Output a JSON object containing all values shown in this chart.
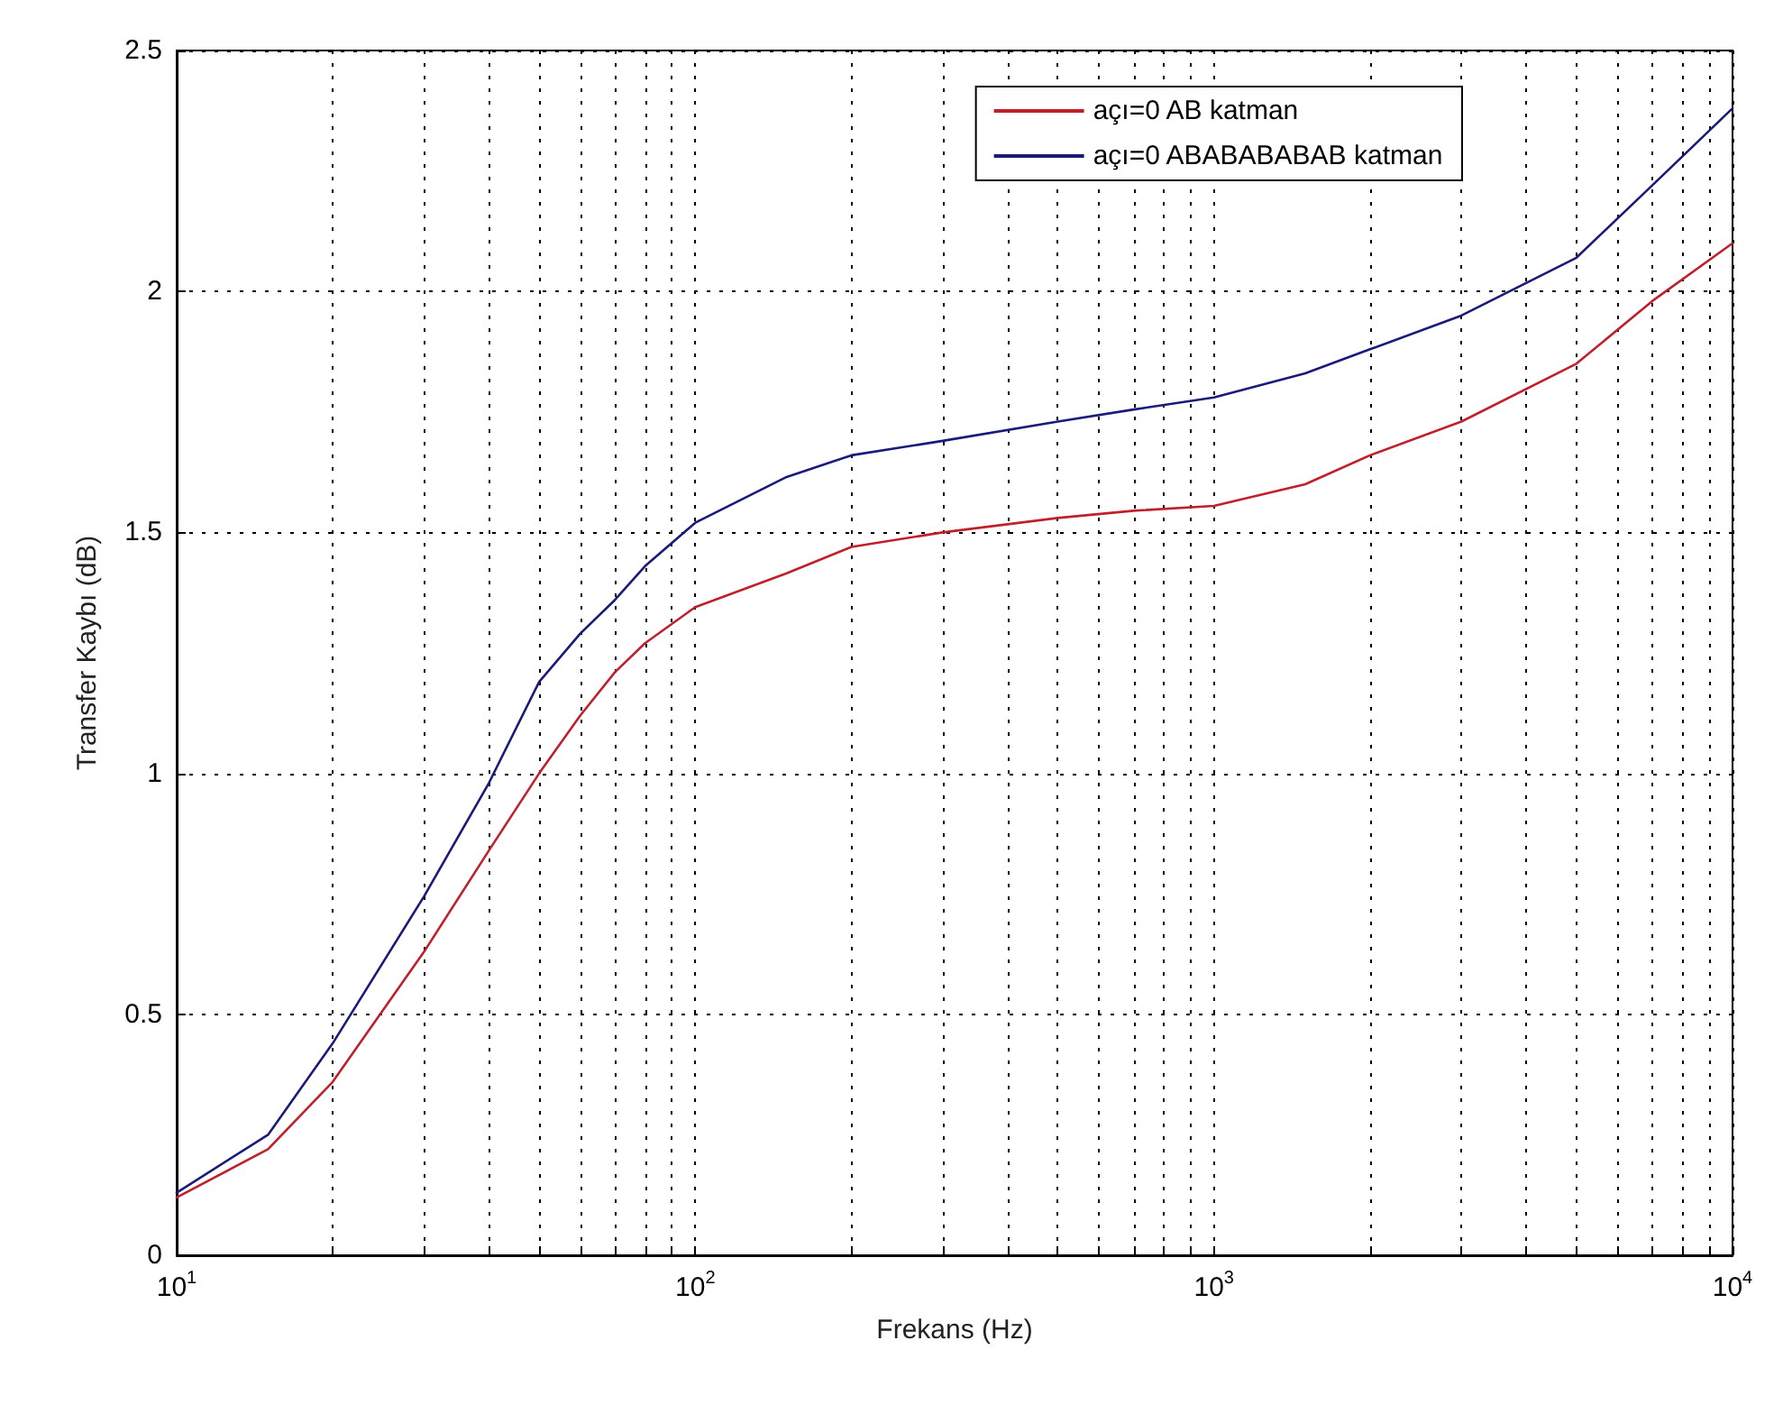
{
  "chart_data": {
    "type": "line",
    "xlabel": "Frekans (Hz)",
    "ylabel": "Transfer Kaybı (dB)",
    "log": "x",
    "grid": true,
    "legend": "top right",
    "line_style": "solid",
    "marker": "none",
    "x": [
      10,
      15,
      20,
      30,
      40,
      50,
      60,
      70,
      80,
      100,
      150,
      200,
      300,
      500,
      700,
      1000,
      1500,
      2000,
      3000,
      5000,
      7000,
      10000
    ],
    "series": [
      {
        "name": "açı=0 AB katman",
        "color": "#c0202a",
        "values": [
          0.12,
          0.22,
          0.36,
          0.63,
          0.84,
          1.0,
          1.12,
          1.21,
          1.27,
          1.345,
          1.415,
          1.47,
          1.5,
          1.53,
          1.545,
          1.555,
          1.6,
          1.66,
          1.73,
          1.85,
          1.98,
          2.1
        ]
      },
      {
        "name": "açı=0 ABABABABAB katman",
        "color": "#1a1a7a",
        "values": [
          0.13,
          0.25,
          0.44,
          0.745,
          0.98,
          1.19,
          1.29,
          1.36,
          1.43,
          1.52,
          1.615,
          1.66,
          1.69,
          1.73,
          1.755,
          1.78,
          1.83,
          1.88,
          1.95,
          2.07,
          2.22,
          2.38
        ]
      }
    ],
    "xlim": [
      10,
      10000
    ],
    "xticks": [
      {
        "value": 10,
        "label": "10$^{1}$"
      },
      {
        "value": 20,
        "label": null
      },
      {
        "value": 30,
        "label": null
      },
      {
        "value": 40,
        "label": null
      },
      {
        "value": 50,
        "label": null
      },
      {
        "value": 60,
        "label": null
      },
      {
        "value": 70,
        "label": null
      },
      {
        "value": 80,
        "label": null
      },
      {
        "value": 90,
        "label": null
      },
      {
        "value": 100,
        "label": "10$^{2}$"
      },
      {
        "value": 200,
        "label": null
      },
      {
        "value": 300,
        "label": null
      },
      {
        "value": 400,
        "label": null
      },
      {
        "value": 500,
        "label": null
      },
      {
        "value": 600,
        "label": null
      },
      {
        "value": 700,
        "label": null
      },
      {
        "value": 800,
        "label": null
      },
      {
        "value": 900,
        "label": null
      },
      {
        "value": 1000,
        "label": "10$^{3}$"
      },
      {
        "value": 2000,
        "label": null
      },
      {
        "value": 3000,
        "label": null
      },
      {
        "value": 4000,
        "label": null
      },
      {
        "value": 5000,
        "label": null
      },
      {
        "value": 6000,
        "label": null
      },
      {
        "value": 7000,
        "label": null
      },
      {
        "value": 8000,
        "label": null
      },
      {
        "value": 9000,
        "label": null
      },
      {
        "value": 10000,
        "label": "10$^{4}$"
      }
    ],
    "ylim": [
      0,
      2.5
    ],
    "yticks": [
      0,
      0.5,
      1,
      1.5,
      2,
      2.5
    ]
  }
}
